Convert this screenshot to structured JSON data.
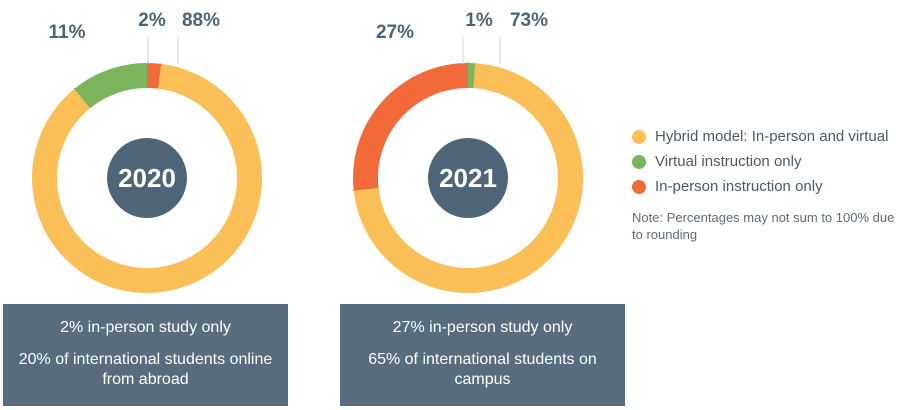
{
  "chart_data": [
    {
      "type": "pie",
      "title": "2020",
      "slices": [
        {
          "label": "Hybrid model: In-person and virtual",
          "value": 88,
          "text": "88%",
          "color": "#fbbf57"
        },
        {
          "label": "Virtual instruction only",
          "value": 11,
          "text": "11%",
          "color": "#7ab55c"
        },
        {
          "label": "In-person instruction only",
          "value": 2,
          "text": "2%",
          "color": "#f26a3a"
        }
      ]
    },
    {
      "type": "pie",
      "title": "2021",
      "slices": [
        {
          "label": "Hybrid model: In-person and virtual",
          "value": 73,
          "text": "73%",
          "color": "#fbbf57"
        },
        {
          "label": "Virtual instruction only",
          "value": 1,
          "text": "1%",
          "color": "#7ab55c"
        },
        {
          "label": "In-person instruction only",
          "value": 27,
          "text": "27%",
          "color": "#f26a3a"
        }
      ]
    }
  ],
  "legend": {
    "items": [
      {
        "label": "Hybrid model: In-person and virtual",
        "color": "#fbbf57"
      },
      {
        "label": "Virtual instruction only",
        "color": "#7ab55c"
      },
      {
        "label": "In-person instruction only",
        "color": "#f26a3a"
      }
    ],
    "note": "Note: Percentages may not sum to 100% due to rounding"
  },
  "summary": {
    "y2020": {
      "line1": "2% in-person study only",
      "line2": "20% of international students online from abroad"
    },
    "y2021": {
      "line1": "27% in-person study only",
      "line2": "65% of international students on campus"
    }
  },
  "colors": {
    "center": "#4d6577",
    "box": "#576c7c",
    "label": "#4a6477"
  }
}
